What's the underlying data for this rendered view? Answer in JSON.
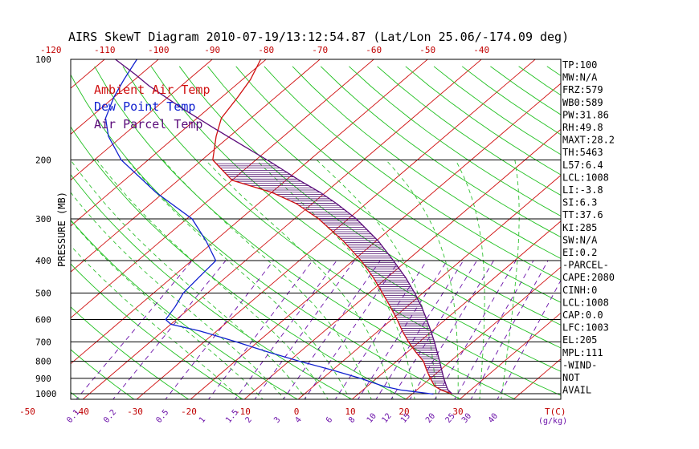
{
  "title": "AIRS SkewT Diagram 2010-07-19/13:12:54.87 (Lat/Lon 25.06/-174.09 deg)",
  "legend": {
    "ambient": "Ambient Air Temp",
    "dewpoint": "Dew Point Temp",
    "parcel": "Air Parcel Temp"
  },
  "colors": {
    "ambient": "#d01010",
    "dewpoint": "#1020d0",
    "parcel": "#5a0a7a",
    "dry_adiabat": "#20c020",
    "moist_adiabat": "#30c030",
    "isotherm": "#d01010",
    "mixing": "#6a0fa8",
    "hatch": "#4a0a6a"
  },
  "yaxis_label": "PRESSURE (MB)",
  "indices": [
    "TP:100",
    "MW:N/A",
    "FRZ:579",
    "WB0:589",
    "PW:31.86",
    "RH:49.8",
    "MAXT:28.2",
    "TH:5463",
    "L57:6.4",
    "LCL:1008",
    "LI:-3.8",
    "SI:6.3",
    "TT:37.6",
    "KI:285",
    "SW:N/A",
    "EI:0.2",
    "-PARCEL-",
    "CAPE:2080",
    "CINH:0",
    "LCL:1008",
    "CAP:0.0",
    "LFC:1003",
    "EL:205",
    "MPL:111",
    "-WIND-",
    "NOT",
    "AVAIL"
  ],
  "chart_data": {
    "type": "line",
    "title": "AIRS SkewT Diagram 2010-07-19/13:12:54.87 (Lat/Lon 25.06/-174.09 deg)",
    "ylabel": "PRESSURE (MB)",
    "xlabel": "T(C)",
    "pressure_ticks": [
      100,
      200,
      300,
      400,
      500,
      600,
      700,
      800,
      900,
      1000
    ],
    "pressure_gridlines": [
      100,
      200,
      300,
      400,
      500,
      600,
      700,
      800,
      900,
      1000
    ],
    "temp_ticks_top": [
      -120,
      -110,
      -100,
      -90,
      -80,
      -70,
      -60,
      -50,
      -40
    ],
    "temp_ticks_bottom": [
      -50,
      -40,
      -30,
      -20,
      -10,
      0,
      10,
      20,
      30
    ],
    "temp_unit_label": "T(C)",
    "mixing_ratio_labels": [
      "0.1",
      "0.2",
      "0.5",
      "1",
      "1.5",
      "2",
      "3",
      "4",
      "6",
      "8",
      "10",
      "12",
      "15",
      "20",
      "25",
      "30",
      "40"
    ],
    "mixing_ratio_unit": "(g/kg)",
    "isotherm_range": [
      -200,
      40
    ],
    "dry_adiabats_theta_K": [
      230,
      240,
      250,
      260,
      270,
      280,
      290,
      300,
      310,
      320,
      330,
      340,
      350,
      360,
      370,
      380,
      390,
      400,
      410,
      420,
      430,
      440,
      450,
      460,
      470,
      480,
      490,
      500,
      510,
      520
    ],
    "moist_adiabats_start_C": [
      -10,
      -6,
      -2,
      2,
      6,
      10,
      14,
      18,
      22,
      26,
      30,
      34,
      38
    ],
    "series": [
      {
        "name": "Ambient Air Temp",
        "points": [
          {
            "p": 1003,
            "t": 27.5
          },
          {
            "p": 975,
            "t": 24.5
          },
          {
            "p": 950,
            "t": 22.5
          },
          {
            "p": 900,
            "t": 20.0
          },
          {
            "p": 850,
            "t": 17.5
          },
          {
            "p": 800,
            "t": 15.0
          },
          {
            "p": 750,
            "t": 11.5
          },
          {
            "p": 700,
            "t": 8.0
          },
          {
            "p": 650,
            "t": 4.5
          },
          {
            "p": 600,
            "t": 1.0
          },
          {
            "p": 550,
            "t": -3.0
          },
          {
            "p": 500,
            "t": -7.5
          },
          {
            "p": 450,
            "t": -12.5
          },
          {
            "p": 400,
            "t": -18.5
          },
          {
            "p": 350,
            "t": -26.0
          },
          {
            "p": 300,
            "t": -35.5
          },
          {
            "p": 270,
            "t": -43.0
          },
          {
            "p": 250,
            "t": -50.0
          },
          {
            "p": 230,
            "t": -60.0
          },
          {
            "p": 200,
            "t": -68.0
          },
          {
            "p": 170,
            "t": -72.5
          },
          {
            "p": 150,
            "t": -75.5
          },
          {
            "p": 130,
            "t": -77.0
          },
          {
            "p": 115,
            "t": -78.5
          },
          {
            "p": 100,
            "t": -81.0
          }
        ]
      },
      {
        "name": "Dew Point Temp",
        "points": [
          {
            "p": 1003,
            "t": 24.0
          },
          {
            "p": 975,
            "t": 17.0
          },
          {
            "p": 950,
            "t": 13.0
          },
          {
            "p": 900,
            "t": 7.0
          },
          {
            "p": 850,
            "t": 0.0
          },
          {
            "p": 800,
            "t": -8.0
          },
          {
            "p": 750,
            "t": -16.0
          },
          {
            "p": 700,
            "t": -24.0
          },
          {
            "p": 650,
            "t": -33.0
          },
          {
            "p": 620,
            "t": -40.0
          },
          {
            "p": 600,
            "t": -42.0
          },
          {
            "p": 550,
            "t": -43.0
          },
          {
            "p": 500,
            "t": -44.5
          },
          {
            "p": 450,
            "t": -45.0
          },
          {
            "p": 400,
            "t": -45.5
          },
          {
            "p": 350,
            "t": -51.5
          },
          {
            "p": 300,
            "t": -59.0
          },
          {
            "p": 250,
            "t": -71.5
          },
          {
            "p": 200,
            "t": -85.0
          },
          {
            "p": 170,
            "t": -92.5
          },
          {
            "p": 150,
            "t": -97.0
          },
          {
            "p": 130,
            "t": -100.0
          },
          {
            "p": 115,
            "t": -102.0
          },
          {
            "p": 100,
            "t": -104.0
          }
        ]
      },
      {
        "name": "Air Parcel Temp",
        "points": [
          {
            "p": 1003,
            "t": 27.5
          },
          {
            "p": 975,
            "t": 25.8
          },
          {
            "p": 950,
            "t": 24.7
          },
          {
            "p": 900,
            "t": 22.5
          },
          {
            "p": 850,
            "t": 20.3
          },
          {
            "p": 800,
            "t": 18.0
          },
          {
            "p": 750,
            "t": 15.5
          },
          {
            "p": 700,
            "t": 12.8
          },
          {
            "p": 650,
            "t": 9.8
          },
          {
            "p": 600,
            "t": 6.5
          },
          {
            "p": 550,
            "t": 2.8
          },
          {
            "p": 500,
            "t": -1.5
          },
          {
            "p": 450,
            "t": -6.5
          },
          {
            "p": 400,
            "t": -12.5
          },
          {
            "p": 350,
            "t": -19.5
          },
          {
            "p": 300,
            "t": -28.5
          },
          {
            "p": 270,
            "t": -35.5
          },
          {
            "p": 250,
            "t": -41.0
          },
          {
            "p": 230,
            "t": -47.5
          },
          {
            "p": 205,
            "t": -56.0
          },
          {
            "p": 180,
            "t": -66.0
          },
          {
            "p": 160,
            "t": -75.0
          },
          {
            "p": 140,
            "t": -85.0
          },
          {
            "p": 120,
            "t": -96.0
          },
          {
            "p": 111,
            "t": -101.0
          },
          {
            "p": 100,
            "t": -108.0
          }
        ]
      }
    ],
    "cape_region": {
      "from_p": 1003,
      "to_p": 205
    }
  }
}
